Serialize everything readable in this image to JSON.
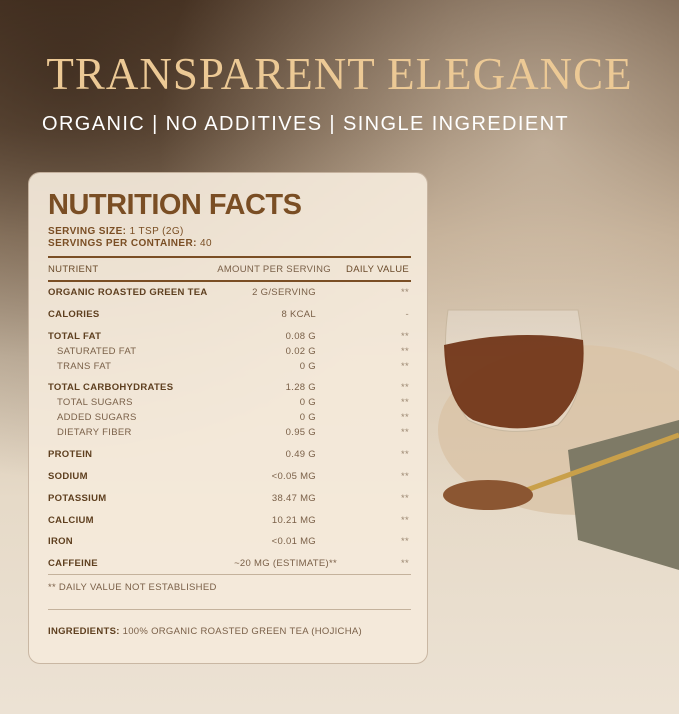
{
  "headline": "TRANSPARENT ELEGANCE",
  "tagline": "ORGANIC | NO ADDITIVES | SINGLE INGREDIENT",
  "nutrition": {
    "title": "NUTRITION FACTS",
    "serving_size_label": "SERVING SIZE:",
    "serving_size": "1 TSP (2G)",
    "servings_label": "SERVINGS PER CONTAINER:",
    "servings": "40",
    "columns": [
      "NUTRIENT",
      "AMOUNT PER SERVING",
      "DAILY VALUE"
    ],
    "rows": [
      {
        "name": "ORGANIC ROASTED GREEN TEA",
        "amount": "2 G/SERVING",
        "dv": "**"
      },
      {
        "name": "CALORIES",
        "amount": "8 KCAL",
        "dv": "-"
      },
      {
        "name": "TOTAL FAT",
        "amount": "0.08 G",
        "dv": "**"
      },
      {
        "name": "SATURATED FAT",
        "amount": "0.02 G",
        "dv": "**"
      },
      {
        "name": "TRANS FAT",
        "amount": "0 G",
        "dv": "**"
      },
      {
        "name": "TOTAL CARBOHYDRATES",
        "amount": "1.28 G",
        "dv": "**"
      },
      {
        "name": "TOTAL SUGARS",
        "amount": "0 G",
        "dv": "**"
      },
      {
        "name": "ADDED SUGARS",
        "amount": "0 G",
        "dv": "**"
      },
      {
        "name": "DIETARY FIBER",
        "amount": "0.95 G",
        "dv": "**"
      },
      {
        "name": "PROTEIN",
        "amount": "0.49 G",
        "dv": "**"
      },
      {
        "name": "SODIUM",
        "amount": "<0.05 MG",
        "dv": "**"
      },
      {
        "name": "POTASSIUM",
        "amount": "38.47 MG",
        "dv": "**"
      },
      {
        "name": "CALCIUM",
        "amount": "10.21 MG",
        "dv": "**"
      },
      {
        "name": "IRON",
        "amount": "<0.01 MG",
        "dv": "**"
      },
      {
        "name": "CAFFEINE",
        "amount": "~20 MG (ESTIMATE)**",
        "dv": "**"
      }
    ],
    "footnote": "** DAILY VALUE NOT ESTABLISHED",
    "ingredients_label": "INGREDIENTS:",
    "ingredients": "100% ORGANIC ROASTED GREEN TEA (HOJICHA)"
  },
  "colors": {
    "brand_brown": "#7a4e24",
    "gold": "#ecc995",
    "tea": "#6b2e10"
  }
}
